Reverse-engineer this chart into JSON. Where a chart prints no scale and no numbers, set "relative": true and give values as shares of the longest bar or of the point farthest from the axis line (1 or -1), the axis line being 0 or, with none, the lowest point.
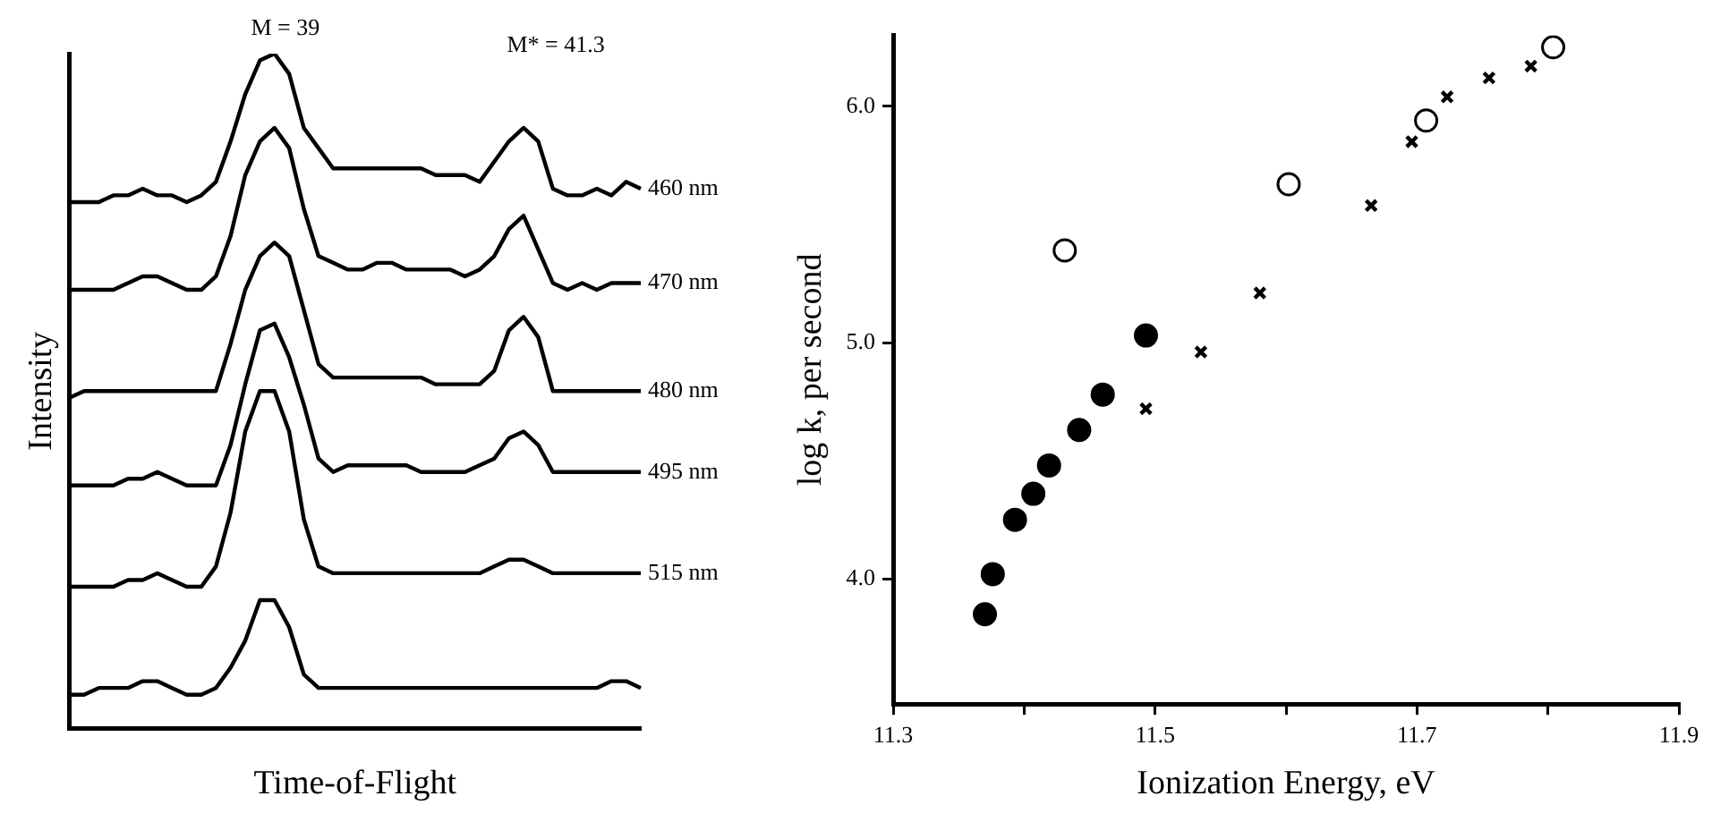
{
  "chart_data": [
    {
      "type": "line",
      "relative": true,
      "xlabel": "Time-of-Flight",
      "ylabel": "Intensity",
      "annotations": [
        "M = 39",
        "M* = 41.3"
      ],
      "grid": false,
      "legend": false,
      "marker": "none",
      "categories": [
        null,
        null,
        null,
        null,
        null,
        null,
        null,
        null,
        null,
        null,
        null,
        null,
        null,
        null,
        null,
        null,
        null,
        null,
        null,
        null,
        null,
        null,
        null,
        null,
        null,
        null,
        null,
        null,
        null,
        null,
        null,
        null,
        null,
        null,
        null,
        null,
        null,
        null,
        null,
        null
      ],
      "series": [
        {
          "name": "460 nm",
          "color": "#000000",
          "values": [
            0.78,
            0.78,
            0.78,
            0.79,
            0.79,
            0.8,
            0.79,
            0.79,
            0.78,
            0.79,
            0.81,
            0.87,
            0.94,
            0.99,
            1,
            0.97,
            0.89,
            0.86,
            0.83,
            0.83,
            0.83,
            0.83,
            0.83,
            0.83,
            0.83,
            0.82,
            0.82,
            0.82,
            0.81,
            0.84,
            0.87,
            0.89,
            0.87,
            0.8,
            0.79,
            0.79,
            0.8,
            0.79,
            0.81,
            0.8
          ]
        },
        {
          "name": "470 nm",
          "color": "#000000",
          "values": [
            0.65,
            0.65,
            0.65,
            0.65,
            0.66,
            0.67,
            0.67,
            0.66,
            0.65,
            0.65,
            0.67,
            0.73,
            0.82,
            0.87,
            0.89,
            0.86,
            0.77,
            0.7,
            0.69,
            0.68,
            0.68,
            0.69,
            0.69,
            0.68,
            0.68,
            0.68,
            0.68,
            0.67,
            0.68,
            0.7,
            0.74,
            0.76,
            0.71,
            0.66,
            0.65,
            0.66,
            0.65,
            0.66,
            0.66,
            0.66
          ]
        },
        {
          "name": "480 nm",
          "color": "#000000",
          "values": [
            0.49,
            0.5,
            0.5,
            0.5,
            0.5,
            0.5,
            0.5,
            0.5,
            0.5,
            0.5,
            0.5,
            0.57,
            0.65,
            0.7,
            0.72,
            0.7,
            0.62,
            0.54,
            0.52,
            0.52,
            0.52,
            0.52,
            0.52,
            0.52,
            0.52,
            0.51,
            0.51,
            0.51,
            0.51,
            0.53,
            0.59,
            0.61,
            0.58,
            0.5,
            0.5,
            0.5,
            0.5,
            0.5,
            0.5,
            0.5
          ]
        },
        {
          "name": "495 nm",
          "color": "#000000",
          "values": [
            0.36,
            0.36,
            0.36,
            0.36,
            0.37,
            0.37,
            0.38,
            0.37,
            0.36,
            0.36,
            0.36,
            0.42,
            0.51,
            0.59,
            0.6,
            0.55,
            0.48,
            0.4,
            0.38,
            0.39,
            0.39,
            0.39,
            0.39,
            0.39,
            0.38,
            0.38,
            0.38,
            0.38,
            0.39,
            0.4,
            0.43,
            0.44,
            0.42,
            0.38,
            0.38,
            0.38,
            0.38,
            0.38,
            0.38,
            0.38
          ]
        },
        {
          "name": "515 nm",
          "color": "#000000",
          "values": [
            0.21,
            0.21,
            0.21,
            0.21,
            0.22,
            0.22,
            0.23,
            0.22,
            0.21,
            0.21,
            0.24,
            0.32,
            0.44,
            0.5,
            0.5,
            0.44,
            0.31,
            0.24,
            0.23,
            0.23,
            0.23,
            0.23,
            0.23,
            0.23,
            0.23,
            0.23,
            0.23,
            0.23,
            0.23,
            0.24,
            0.25,
            0.25,
            0.24,
            0.23,
            0.23,
            0.23,
            0.23,
            0.23,
            0.23,
            0.23
          ]
        },
        {
          "color": "#000000",
          "values": [
            0.05,
            0.05,
            0.06,
            0.06,
            0.06,
            0.07,
            0.07,
            0.06,
            0.05,
            0.05,
            0.06,
            0.09,
            0.13,
            0.19,
            0.19,
            0.15,
            0.08,
            0.06,
            0.06,
            0.06,
            0.06,
            0.06,
            0.06,
            0.06,
            0.06,
            0.06,
            0.06,
            0.06,
            0.06,
            0.06,
            0.06,
            0.06,
            0.06,
            0.06,
            0.06,
            0.06,
            0.06,
            0.07,
            0.07,
            0.06
          ]
        }
      ]
    },
    {
      "type": "scatter",
      "xlabel": "Ionization Energy, eV",
      "ylabel": "log k, per second",
      "grid": false,
      "legend": false,
      "xlim": [
        11.3,
        11.9
      ],
      "xticks": [
        11.3,
        {
          "value": 11.4,
          "label": null
        },
        11.5,
        {
          "value": 11.6,
          "label": null
        },
        11.7,
        {
          "value": 11.8,
          "label": null
        },
        11.9
      ],
      "ylim": [
        3.47,
        6.3
      ],
      "yticks": [
        {
          "value": 4,
          "label": "4.0"
        },
        {
          "value": 5,
          "label": "5.0"
        },
        {
          "value": 6,
          "label": "6.0"
        }
      ],
      "series": [
        {
          "color": "#000000",
          "marker": "circle",
          "x": [
            11.37,
            11.376,
            11.393,
            11.407,
            11.419,
            11.442,
            11.46,
            11.493
          ],
          "values": [
            3.85,
            4.02,
            4.25,
            4.36,
            4.48,
            4.63,
            4.78,
            5.03
          ]
        },
        {
          "color": "#000000",
          "marker": "circle",
          "x": [
            11.431,
            11.602,
            11.707,
            11.804
          ],
          "values": [
            5.39,
            5.67,
            5.94,
            6.25
          ]
        },
        {
          "color": "#000000",
          "marker": "cross",
          "x": [
            11.493,
            11.535,
            11.58,
            11.665,
            11.696,
            11.723,
            11.755,
            11.787
          ],
          "values": [
            4.72,
            4.96,
            5.21,
            5.58,
            5.85,
            6.04,
            6.12,
            6.17
          ]
        }
      ]
    }
  ]
}
